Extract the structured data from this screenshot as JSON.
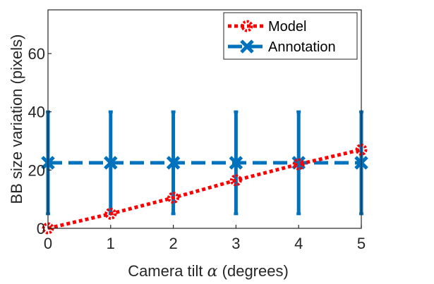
{
  "chart_data": {
    "type": "line",
    "title": "",
    "xlabel_prefix": "Camera tilt ",
    "xlabel_symbol": "α",
    "xlabel_suffix": " (degrees)",
    "ylabel": "BB size variation (pixels)",
    "x": [
      0,
      1,
      2,
      3,
      4,
      5
    ],
    "xlim": [
      0,
      5
    ],
    "ylim": [
      0,
      75
    ],
    "xticks": [
      0,
      1,
      2,
      3,
      4,
      5
    ],
    "yticks": [
      0,
      20,
      40,
      60
    ],
    "grid": false,
    "legend_position": "top-right",
    "series": [
      {
        "name": "Model",
        "color": "#ff0000",
        "style": "dotted",
        "marker": "circle",
        "values": [
          0,
          5,
          10.5,
          16.5,
          22,
          27
        ]
      },
      {
        "name": "Annotation",
        "color": "#0072bd",
        "style": "dashed",
        "marker": "x",
        "values": [
          22.5,
          22.5,
          22.5,
          22.5,
          22.5,
          22.5
        ],
        "error_low": [
          5,
          5,
          5,
          5,
          5,
          5
        ],
        "error_high": [
          40,
          40,
          40,
          40,
          40,
          40
        ]
      }
    ]
  }
}
